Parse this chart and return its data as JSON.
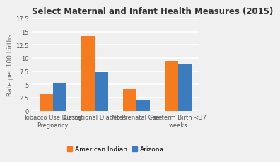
{
  "title": "Select Maternal and Infant Health Measures (2015)",
  "categories": [
    "Tobacco Use During\nPregnancy",
    "Gestational Diabetes",
    "No Prenatal Care",
    "Pre-term Birth <37\nweeks"
  ],
  "american_indian": [
    3.2,
    14.2,
    4.1,
    9.5
  ],
  "arizona": [
    5.2,
    7.3,
    2.1,
    8.8
  ],
  "american_indian_color": "#F47B20",
  "arizona_color": "#3B7BBE",
  "ylabel": "Rate per 100 births",
  "ylim": [
    0,
    17.5
  ],
  "yticks": [
    0,
    2.5,
    5,
    7.5,
    10,
    12.5,
    15,
    17.5
  ],
  "ytick_labels": [
    "0",
    "2.5",
    "5",
    "7.5",
    "10",
    "12.5",
    "15",
    "17.5"
  ],
  "background_color": "#f0f0f0",
  "plot_bg_color": "#f0f0f0",
  "grid_color": "#ffffff",
  "legend_labels": [
    "American Indian",
    "Arizona"
  ],
  "bar_width": 0.32,
  "title_fontsize": 8.5,
  "ylabel_fontsize": 6.5,
  "tick_fontsize": 6.0,
  "legend_fontsize": 6.5
}
